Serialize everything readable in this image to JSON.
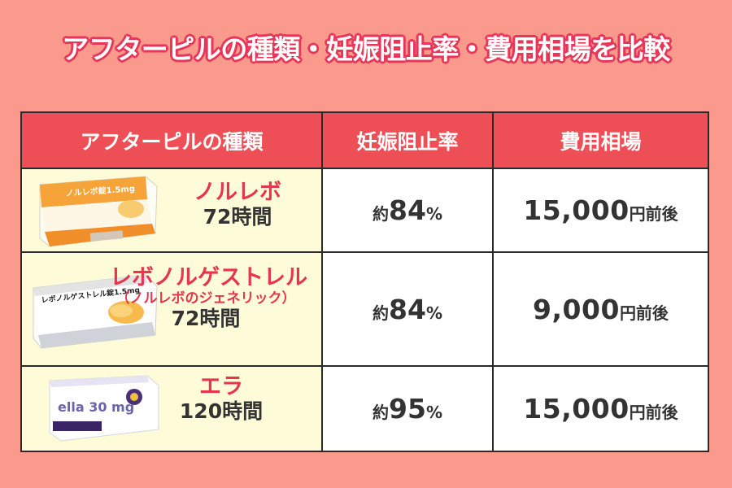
{
  "title": "アフターピルの種類・妊娠阻止率・費用相場を比較",
  "table": {
    "headers": [
      "アフターピルの種類",
      "妊娠阻止率",
      "費用相場"
    ],
    "rows": [
      {
        "name": "ノルレボ",
        "subname": "",
        "hours": "72時間",
        "package_text": "ノルレボ錠1.5mg",
        "rate_prefix": "約",
        "rate": "84",
        "rate_unit": "%",
        "cost": "15,000",
        "cost_unit": "円前後"
      },
      {
        "name": "レボノルゲストレル",
        "subname": "（ノルレボのジェネリック）",
        "hours": "72時間",
        "package_text": "レボノルゲストレル錠1.5mg",
        "rate_prefix": "約",
        "rate": "84",
        "rate_unit": "%",
        "cost": "9,000",
        "cost_unit": "円前後"
      },
      {
        "name": "エラ",
        "subname": "",
        "hours": "120時間",
        "package_text": "ella 30 mg",
        "rate_prefix": "約",
        "rate": "95",
        "rate_unit": "%",
        "cost": "15,000",
        "cost_unit": "円前後"
      }
    ]
  },
  "colors": {
    "background": "#f99a8c",
    "header": "#ee4f57",
    "accent_red": "#e8354f",
    "pill_cell": "#fdfbd8"
  }
}
